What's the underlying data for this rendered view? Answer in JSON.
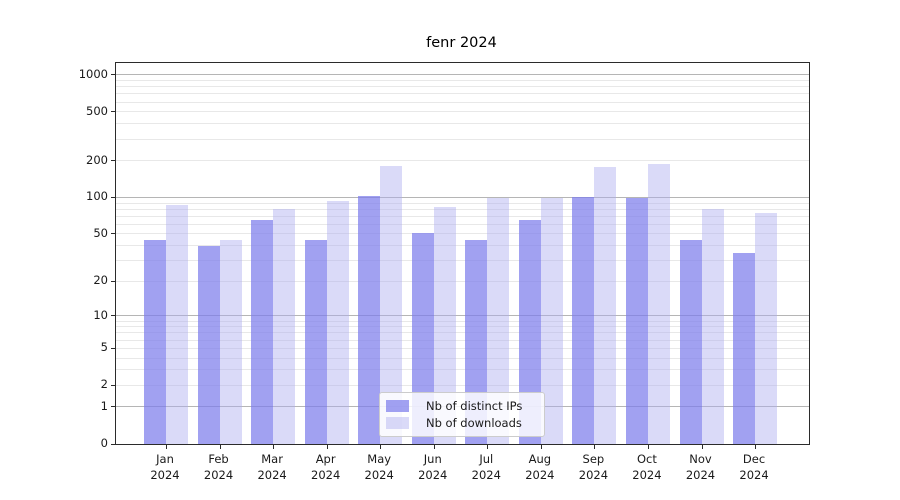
{
  "title": "fenr 2024",
  "chart_data": {
    "type": "bar",
    "title": "fenr 2024",
    "categories": [
      "Jan",
      "Feb",
      "Mar",
      "Apr",
      "May",
      "Jun",
      "Jul",
      "Aug",
      "Sep",
      "Oct",
      "Nov",
      "Dec"
    ],
    "x_year_label": "2024",
    "series": [
      {
        "key": "distinct-ips",
        "name": "Nb of distinct IPs",
        "color": "#a2a2f1",
        "fill": "rgba(125,125,235,0.72)",
        "values": [
          45,
          40,
          65,
          45,
          103,
          51,
          45,
          65,
          101,
          100,
          45,
          35
        ]
      },
      {
        "key": "downloads",
        "name": "Nb of downloads",
        "color": "#dadaf8",
        "fill": "rgba(172,172,240,0.45)",
        "values": [
          87,
          45,
          80,
          94,
          180,
          84,
          100,
          100,
          178,
          188,
          81,
          75
        ]
      }
    ],
    "yscale": "log1p",
    "ylim": [
      0,
      1250
    ],
    "ytick_values": [
      0,
      1,
      2,
      5,
      10,
      20,
      50,
      100,
      200,
      500,
      1000
    ],
    "major_grid_values": [
      1,
      10,
      100,
      1000
    ],
    "minor_grid_values": [
      2,
      3,
      4,
      5,
      6,
      7,
      8,
      9,
      20,
      30,
      40,
      50,
      60,
      70,
      80,
      90,
      200,
      300,
      400,
      500,
      600,
      700,
      800,
      900
    ],
    "legend_position": "lower center",
    "grid": true,
    "colors": {
      "major_grid": "#b5b5b5",
      "minor_grid": "#e8e8e8",
      "spine": "#2b2b2b",
      "text": "#1a1a1a",
      "background": "#ffffff"
    }
  }
}
